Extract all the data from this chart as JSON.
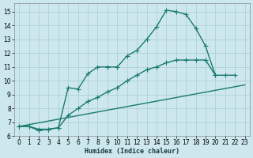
{
  "xlabel": "Humidex (Indice chaleur)",
  "background_color": "#cce8ee",
  "grid_color": "#aacccc",
  "line_color": "#1a7a6e",
  "xlim": [
    -0.5,
    23.5
  ],
  "ylim": [
    6.3,
    15.6
  ],
  "yticks": [
    6,
    7,
    8,
    9,
    10,
    11,
    12,
    13,
    14,
    15
  ],
  "xticks": [
    0,
    1,
    2,
    3,
    4,
    5,
    6,
    7,
    8,
    9,
    10,
    11,
    12,
    13,
    14,
    15,
    16,
    17,
    18,
    19,
    20,
    21,
    22,
    23
  ],
  "line1_x": [
    0,
    1,
    2,
    3,
    4,
    5,
    6,
    7,
    8,
    9,
    10,
    11,
    12,
    13,
    14,
    15,
    16,
    17,
    18,
    19,
    20,
    21,
    22
  ],
  "line1_y": [
    6.7,
    6.7,
    6.4,
    6.5,
    6.6,
    9.5,
    9.4,
    10.5,
    11.0,
    11.0,
    11.0,
    11.8,
    12.2,
    13.0,
    13.9,
    15.1,
    15.0,
    14.8,
    13.8,
    12.5,
    10.4,
    10.4,
    10.4
  ],
  "line2_x": [
    0,
    1,
    2,
    3,
    4,
    5,
    6,
    7,
    8,
    9,
    10,
    11,
    12,
    13,
    14,
    15,
    16,
    17,
    18,
    19,
    20
  ],
  "line2_y": [
    6.7,
    6.7,
    6.5,
    6.5,
    6.6,
    7.5,
    8.0,
    8.5,
    8.8,
    9.2,
    9.5,
    10.0,
    10.4,
    10.8,
    11.0,
    11.3,
    11.5,
    11.5,
    11.5,
    11.5,
    10.4
  ],
  "line3_x": [
    0,
    23
  ],
  "line3_y": [
    6.7,
    9.7
  ],
  "marker": "+",
  "marker_size": 4,
  "marker_lw": 0.8,
  "line_width": 1.0,
  "xlabel_fontsize": 6,
  "tick_fontsize": 5.5
}
